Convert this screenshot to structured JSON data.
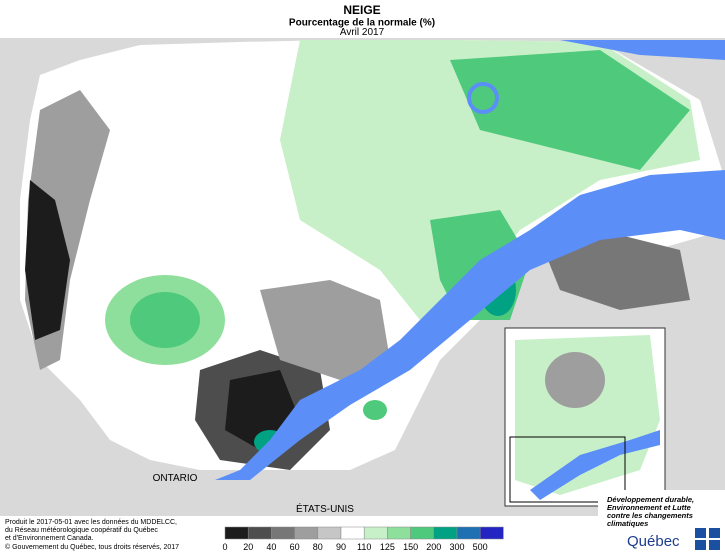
{
  "header": {
    "title": "NEIGE",
    "subtitle": "Pourcentage de la normale (%)",
    "period": "Avril 2017"
  },
  "map": {
    "labels": [
      "ONTARIO",
      "ÉTATS-UNIS"
    ]
  },
  "legend": {
    "bins": [
      0,
      20,
      40,
      60,
      80,
      90,
      110,
      125,
      150,
      200,
      300,
      500
    ],
    "colors": [
      "#1c1c1c",
      "#4d4d4d",
      "#777777",
      "#9e9e9e",
      "#c6c6c6",
      "#ffffff",
      "#c8f0c8",
      "#8fdf9c",
      "#4fc97c",
      "#00a283",
      "#1f70b3",
      "#2424c2"
    ]
  },
  "credits": {
    "lines": [
      "Produit le 2017-05-01 avec les données du MDDELCC,",
      "du Réseau météorologique coopératif du Québec",
      "et d'Environnement Canada."
    ],
    "copyright": "© Gouvernement du Québec, tous droits réservés, 2017"
  },
  "logo": {
    "lines": [
      "Développement durable,",
      "Environnement et Lutte",
      "contre les changements",
      "climatiques"
    ],
    "name": "Québec"
  }
}
